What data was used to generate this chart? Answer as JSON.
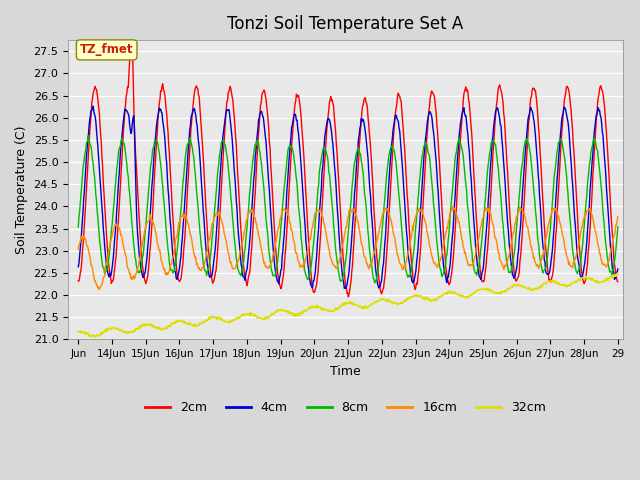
{
  "title": "Tonzi Soil Temperature Set A",
  "xlabel": "Time",
  "ylabel": "Soil Temperature (C)",
  "ylim": [
    21.0,
    27.75
  ],
  "yticks": [
    21.0,
    21.5,
    22.0,
    22.5,
    23.0,
    23.5,
    24.0,
    24.5,
    25.0,
    25.5,
    26.0,
    26.5,
    27.0,
    27.5
  ],
  "legend_label": "TZ_fmet",
  "legend_fg": "#cc2200",
  "legend_bg": "#ffffcc",
  "line_colors": {
    "2cm": "#ff0000",
    "4cm": "#0000cc",
    "8cm": "#00bb00",
    "16cm": "#ff8800",
    "32cm": "#dddd00"
  },
  "x_start": 13.0,
  "x_end": 29.0,
  "xtick_positions": [
    13,
    14,
    15,
    16,
    17,
    18,
    19,
    20,
    21,
    22,
    23,
    24,
    25,
    26,
    27,
    28,
    29
  ],
  "xtick_labels": [
    "Jun",
    "14Jun",
    "15Jun",
    "16Jun",
    "17Jun",
    "18Jun",
    "19Jun",
    "20Jun",
    "21Jun",
    "22Jun",
    "23Jun",
    "24Jun",
    "25Jun",
    "26Jun",
    "27Jun",
    "28Jun",
    "29"
  ],
  "n_points": 800
}
